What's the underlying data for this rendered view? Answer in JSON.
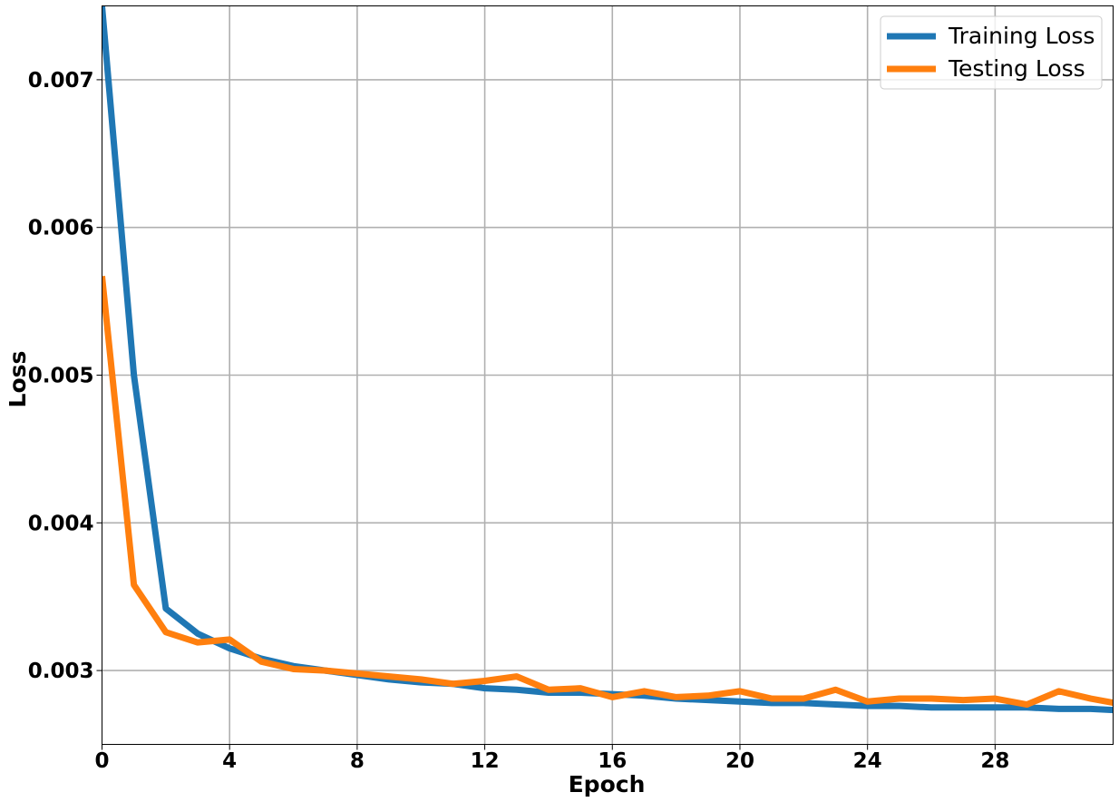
{
  "chart_data": {
    "type": "line",
    "xlabel": "Epoch",
    "ylabel": "Loss",
    "xlim": [
      0,
      31.7
    ],
    "ylim": [
      0.0025,
      0.0075
    ],
    "xticks": [
      0,
      4,
      8,
      12,
      16,
      20,
      24,
      28
    ],
    "xtick_labels": [
      "0",
      "4",
      "8",
      "12",
      "16",
      "20",
      "24",
      "28"
    ],
    "yticks": [
      0.003,
      0.004,
      0.005,
      0.006,
      0.007
    ],
    "ytick_labels": [
      "0.003",
      "0.004",
      "0.005",
      "0.006",
      "0.007"
    ],
    "grid": true,
    "legend_position": "top-right",
    "x": [
      0,
      1,
      2,
      3,
      4,
      5,
      6,
      7,
      8,
      9,
      10,
      11,
      12,
      13,
      14,
      15,
      16,
      17,
      18,
      19,
      20,
      21,
      22,
      23,
      24,
      25,
      26,
      27,
      28,
      29,
      30,
      31,
      32
    ],
    "series": [
      {
        "name": "Training Loss",
        "color": "#1f77b4",
        "values": [
          0.0075,
          0.005,
          0.00342,
          0.00325,
          0.00315,
          0.00308,
          0.00303,
          0.003,
          0.00297,
          0.00294,
          0.00292,
          0.00291,
          0.00288,
          0.00287,
          0.00285,
          0.00285,
          0.00284,
          0.00283,
          0.00281,
          0.0028,
          0.00279,
          0.00278,
          0.00278,
          0.00277,
          0.00276,
          0.00276,
          0.00275,
          0.00275,
          0.00275,
          0.00275,
          0.00274,
          0.00274,
          0.00273
        ]
      },
      {
        "name": "Testing Loss",
        "color": "#ff7f0e",
        "values": [
          0.00567,
          0.00358,
          0.00326,
          0.00319,
          0.00321,
          0.00306,
          0.00301,
          0.003,
          0.00298,
          0.00296,
          0.00294,
          0.00291,
          0.00293,
          0.00296,
          0.00287,
          0.00288,
          0.00282,
          0.00286,
          0.00282,
          0.00283,
          0.00286,
          0.00281,
          0.00281,
          0.00287,
          0.00279,
          0.00281,
          0.00281,
          0.0028,
          0.00281,
          0.00277,
          0.00286,
          0.00281,
          0.00277
        ]
      }
    ]
  }
}
